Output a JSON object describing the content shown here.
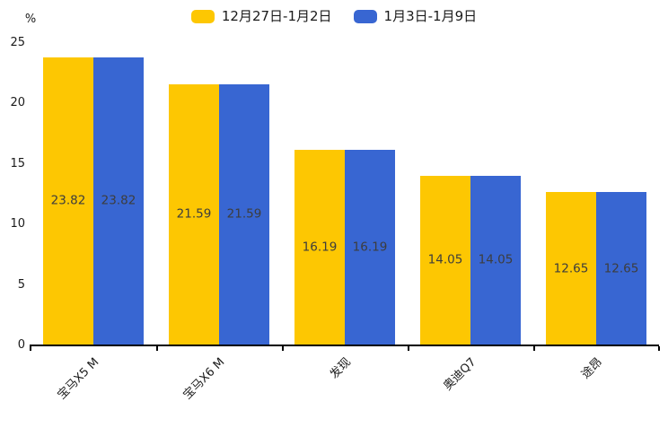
{
  "chart_data": {
    "type": "bar",
    "title": "",
    "unit_label": "%",
    "categories": [
      "宝马X5 M",
      "宝马X6 M",
      "发现",
      "奥迪Q7",
      "途昂"
    ],
    "series": [
      {
        "name": "12月27日-1月2日",
        "color": "#FDC702",
        "values": [
          23.82,
          21.59,
          16.19,
          14.05,
          12.65
        ]
      },
      {
        "name": "1月3日-1月9日",
        "color": "#3866D2",
        "values": [
          23.82,
          21.59,
          16.19,
          14.05,
          12.65
        ]
      }
    ],
    "ylim": [
      0,
      25
    ],
    "yticks": [
      0,
      5,
      10,
      15,
      20,
      25
    ],
    "grid": false,
    "legend_position": "top",
    "value_labels": "inside-center",
    "value_label_color": "#3d3d3d",
    "axis_color": "#000000",
    "background_color": "#ffffff"
  }
}
